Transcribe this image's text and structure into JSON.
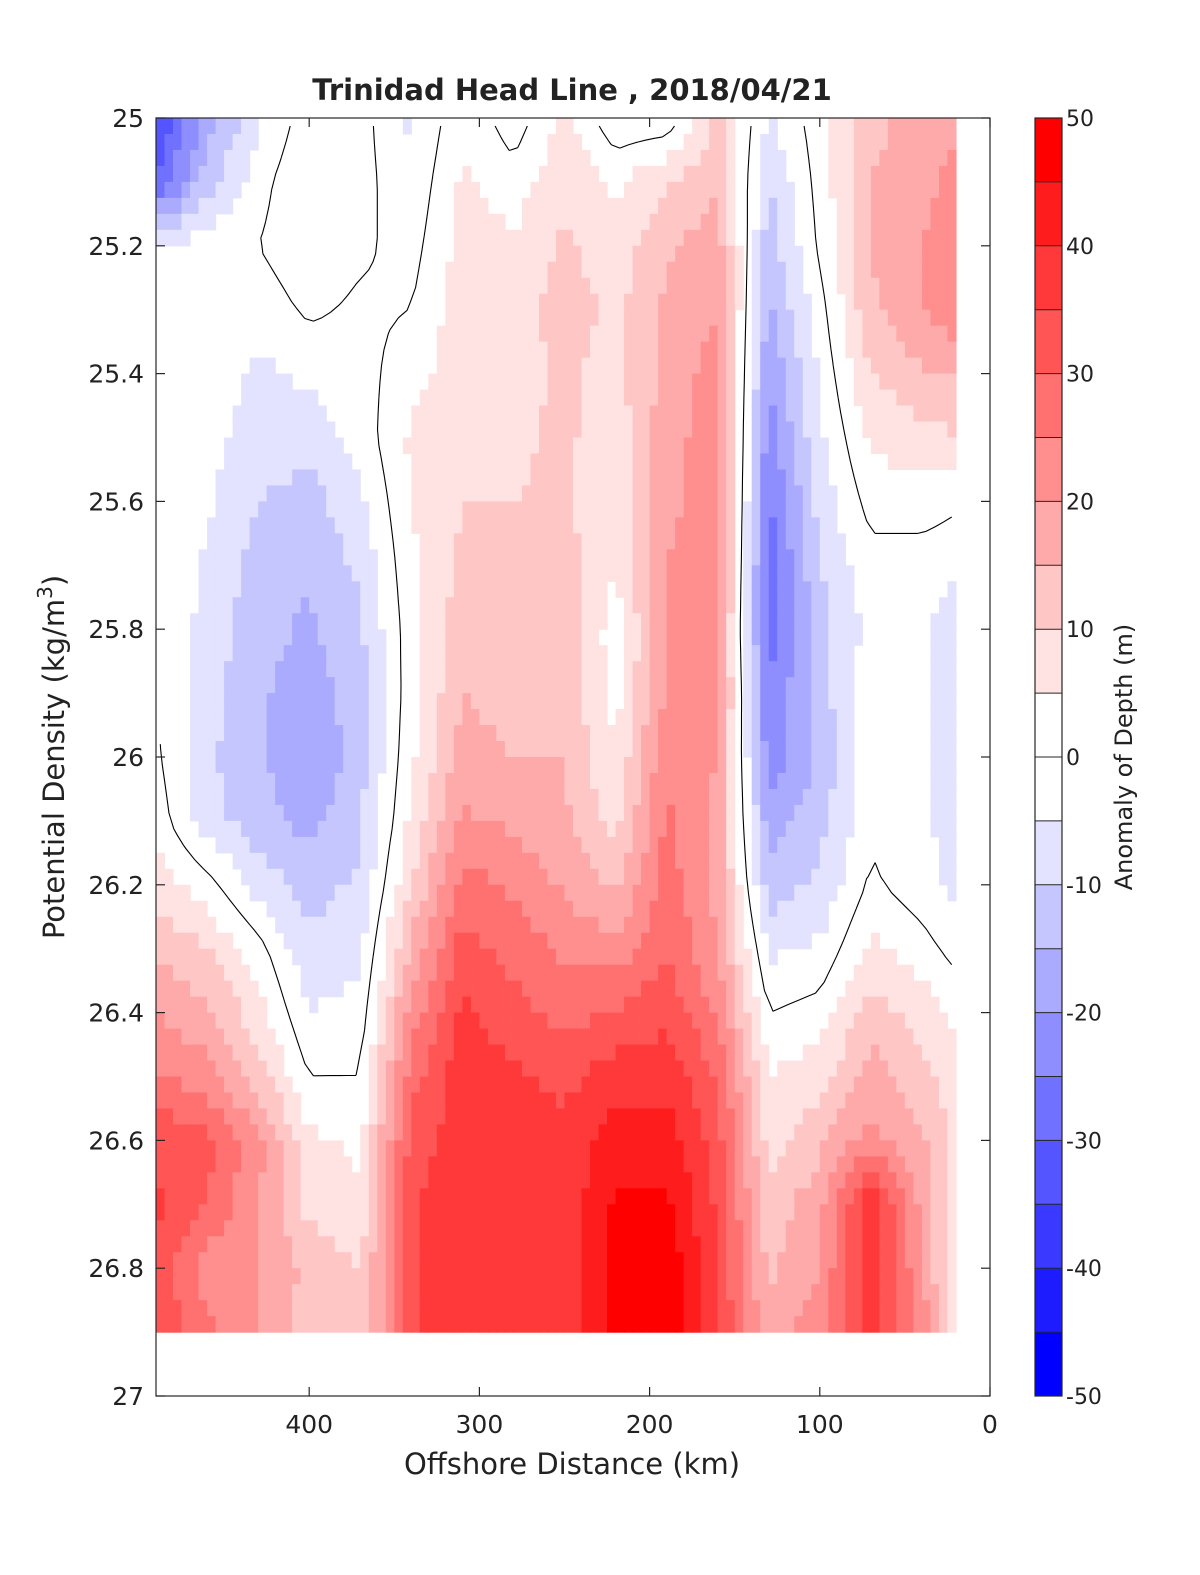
{
  "chart_data": {
    "type": "heatmap",
    "subtype": "filled-contour",
    "title": "Trinidad Head Line , 2018/04/21",
    "xlabel": "Offshore Distance (km)",
    "ylabel_main": "Potential Density (kg/m",
    "ylabel_sup": "3",
    "ylabel_close": ")",
    "colorbar_label": "Anomaly of Depth (m)",
    "x_axis": {
      "lim": [
        490,
        0
      ],
      "reversed": true,
      "ticks": [
        400,
        300,
        200,
        100,
        0
      ],
      "tick_labels": [
        "400",
        "300",
        "200",
        "100",
        "0"
      ]
    },
    "y_axis": {
      "lim": [
        25,
        27
      ],
      "reversed": true,
      "ticks": [
        25,
        25.2,
        25.4,
        25.6,
        25.8,
        26,
        26.2,
        26.4,
        26.6,
        26.8,
        27
      ],
      "tick_labels": [
        "25",
        "25.2",
        "25.4",
        "25.6",
        "25.8",
        "26",
        "26.2",
        "26.4",
        "26.6",
        "26.8",
        "27"
      ]
    },
    "colorbar": {
      "lim": [
        -50,
        50
      ],
      "level_step": 5,
      "ticks": [
        50,
        40,
        30,
        20,
        10,
        0,
        -10,
        -20,
        -30,
        -40,
        -50
      ],
      "tick_labels": [
        "50",
        "40",
        "30",
        "20",
        "10",
        "0",
        "-10",
        "-20",
        "-30",
        "-40",
        "-50"
      ]
    },
    "data_extent": {
      "x_range": [
        490,
        20
      ],
      "y_range": [
        25,
        26.9
      ]
    },
    "colors": {
      "positive": "#ff0000",
      "negative": "#0000ff",
      "zero": "#ffffff",
      "zero_contour": "#000000"
    },
    "x_samples": [
      490,
      460,
      430,
      400,
      370,
      340,
      310,
      280,
      250,
      220,
      190,
      160,
      130,
      100,
      70,
      40,
      20
    ],
    "y_samples": [
      25.0,
      25.1,
      25.2,
      25.3,
      25.4,
      25.5,
      25.6,
      25.7,
      25.8,
      25.9,
      26.0,
      26.1,
      26.2,
      26.3,
      26.4,
      26.5,
      26.6,
      26.7,
      26.8,
      26.9
    ],
    "values": [
      [
        -35,
        -18,
        -6,
        3,
        2,
        -6,
        4,
        -3,
        6,
        -4,
        -4,
        12,
        -6,
        3,
        14,
        16,
        18
      ],
      [
        -30,
        -12,
        -2,
        5,
        2,
        -4,
        6,
        2,
        9,
        4,
        10,
        14,
        -10,
        2,
        15,
        18,
        22
      ],
      [
        -5,
        -2,
        0,
        4,
        1,
        -2,
        7,
        6,
        11,
        7,
        14,
        18,
        -13,
        1,
        15,
        20,
        24
      ],
      [
        0,
        -1,
        -3,
        1,
        -1,
        0,
        8,
        8,
        12,
        9,
        16,
        20,
        -16,
        -2,
        14,
        20,
        24
      ],
      [
        0,
        -2,
        -6,
        -4,
        -2,
        3,
        8,
        8,
        11,
        8,
        17,
        22,
        -20,
        -4,
        10,
        14,
        16
      ],
      [
        0,
        -3,
        -8,
        -8,
        -3,
        6,
        9,
        9,
        11,
        7,
        18,
        23,
        -23,
        -6,
        6,
        8,
        10
      ],
      [
        0,
        -4,
        -10,
        -12,
        -6,
        5,
        10,
        10,
        11,
        6,
        18,
        24,
        -26,
        -8,
        2,
        3,
        1
      ],
      [
        0,
        -6,
        -12,
        -14,
        -9,
        4,
        11,
        10,
        12,
        5,
        20,
        24,
        -28,
        -10,
        -2,
        -3,
        -4
      ],
      [
        0,
        -7,
        -13,
        -16,
        -11,
        3,
        13,
        11,
        13,
        2,
        20,
        22,
        -28,
        -12,
        -3,
        -4,
        -8
      ],
      [
        0,
        -8,
        -14,
        -18,
        -12,
        3,
        15,
        13,
        14,
        3,
        21,
        22,
        -25,
        -12,
        -2,
        -4,
        -9
      ],
      [
        1,
        -9,
        -14,
        -20,
        -12,
        4,
        17,
        15,
        15,
        5,
        24,
        20,
        -23,
        -14,
        -2,
        -4,
        -9
      ],
      [
        3,
        -8,
        -13,
        -17,
        -11,
        6,
        21,
        19,
        16,
        8,
        26,
        18,
        -18,
        -12,
        -1,
        -4,
        -8
      ],
      [
        8,
        2,
        -7,
        -12,
        -9,
        10,
        27,
        24,
        19,
        14,
        28,
        18,
        -13,
        -9,
        1,
        -3,
        -6
      ],
      [
        14,
        10,
        2,
        -9,
        -6,
        16,
        32,
        28,
        24,
        22,
        30,
        20,
        -6,
        -4,
        6,
        2,
        -2
      ],
      [
        20,
        16,
        7,
        -5,
        -3,
        22,
        36,
        32,
        28,
        30,
        34,
        24,
        0,
        2,
        12,
        8,
        4
      ],
      [
        26,
        22,
        12,
        0,
        0,
        28,
        38,
        36,
        33,
        38,
        38,
        30,
        5,
        8,
        18,
        12,
        7
      ],
      [
        34,
        32,
        22,
        6,
        4,
        32,
        38,
        36,
        38,
        42,
        43,
        32,
        8,
        14,
        22,
        16,
        8
      ],
      [
        36,
        30,
        20,
        8,
        6,
        34,
        40,
        36,
        36,
        46,
        46,
        34,
        12,
        18,
        40,
        18,
        8
      ],
      [
        34,
        22,
        20,
        14,
        10,
        34,
        40,
        38,
        36,
        47,
        50,
        34,
        14,
        20,
        40,
        20,
        6
      ],
      [
        35,
        26,
        20,
        12,
        10,
        34,
        38,
        38,
        36,
        46,
        50,
        36,
        16,
        24,
        38,
        24,
        4
      ]
    ]
  }
}
